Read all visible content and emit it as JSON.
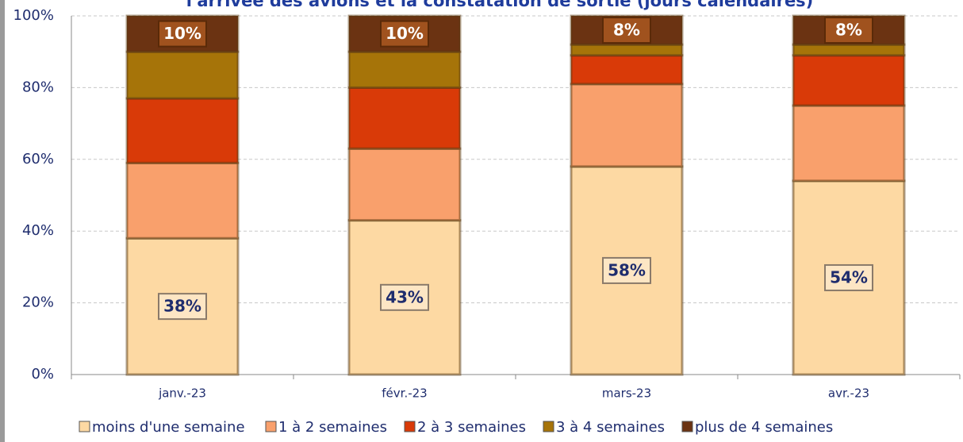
{
  "chart_data": {
    "type": "stacked_bar",
    "title": "l'arrivée des avions et la constatation de sortie (jours calendaires)",
    "categories": [
      "janv.-23",
      "févr.-23",
      "mars-23",
      "avr.-23"
    ],
    "series": [
      {
        "name": "moins d'une semaine",
        "color": "#fdd9a3",
        "values": [
          38,
          43,
          58,
          54
        ],
        "value_labels": [
          "38%",
          "43%",
          "58%",
          "54%"
        ]
      },
      {
        "name": "1 à 2 semaines",
        "color": "#f9a06c",
        "values": [
          21,
          20,
          23,
          21
        ]
      },
      {
        "name": "2 à 3 semaines",
        "color": "#d93a08",
        "values": [
          18,
          17,
          8,
          14
        ]
      },
      {
        "name": "3 à 4 semaines",
        "color": "#a67409",
        "values": [
          13,
          10,
          3,
          3
        ]
      },
      {
        "name": "plus de 4 semaines",
        "color": "#6b3312",
        "values": [
          10,
          10,
          8,
          8
        ],
        "value_labels": [
          "10%",
          "10%",
          "8%",
          "8%"
        ]
      }
    ],
    "ylim": [
      0,
      100
    ],
    "yticks": [
      {
        "value": 0,
        "label": "0%"
      },
      {
        "value": 20,
        "label": "20%"
      },
      {
        "value": 40,
        "label": "40%"
      },
      {
        "value": 60,
        "label": "60%"
      },
      {
        "value": 80,
        "label": "80%"
      },
      {
        "value": 100,
        "label": "100%"
      }
    ],
    "grid": true
  }
}
